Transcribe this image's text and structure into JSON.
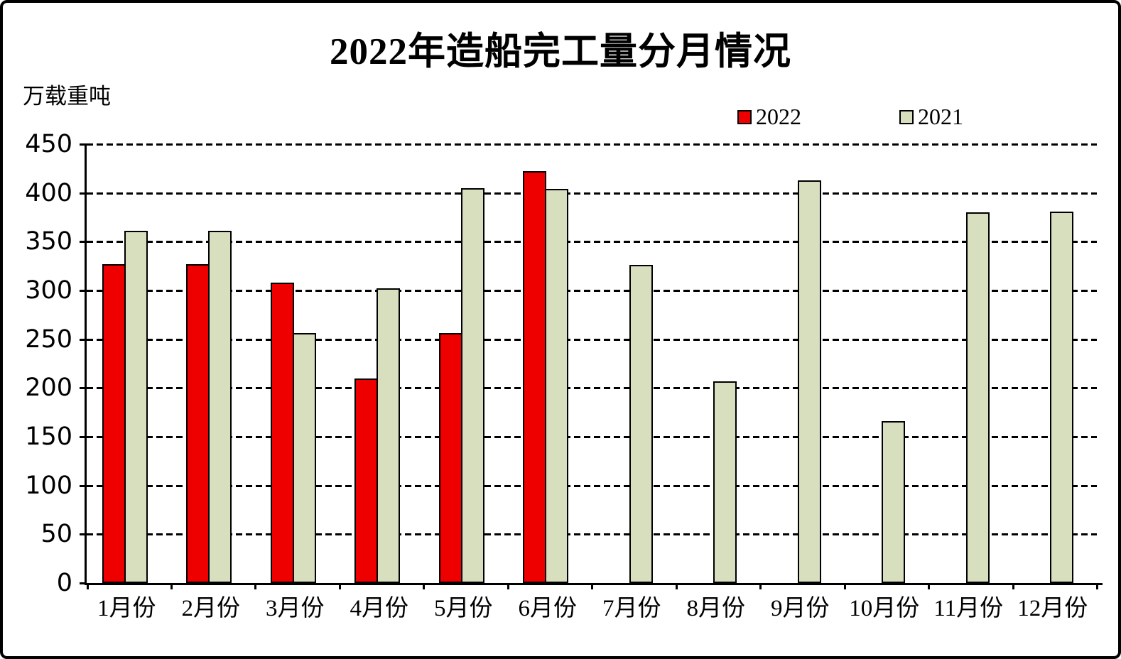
{
  "title": "2022年造船完工量分月情况",
  "y_axis_unit": "万载重吨",
  "legend": [
    {
      "label": "2022",
      "color": "#ee0000"
    },
    {
      "label": "2021",
      "color": "#d8dfbf"
    }
  ],
  "chart_data": {
    "type": "bar",
    "title": "2022年造船完工量分月情况",
    "ylabel": "万载重吨",
    "xlabel": "",
    "categories": [
      "1月份",
      "2月份",
      "3月份",
      "4月份",
      "5月份",
      "6月份",
      "7月份",
      "8月份",
      "9月份",
      "10月份",
      "11月份",
      "12月份"
    ],
    "series": [
      {
        "name": "2022",
        "color": "#ee0000",
        "values": [
          327,
          327,
          308,
          210,
          256,
          422,
          null,
          null,
          null,
          null,
          null,
          null
        ]
      },
      {
        "name": "2021",
        "color": "#d8dfbf",
        "values": [
          361,
          361,
          256,
          302,
          405,
          404,
          326,
          207,
          413,
          166,
          380,
          381
        ]
      }
    ],
    "ylim": [
      0,
      450
    ],
    "yticks": [
      0,
      50,
      100,
      150,
      200,
      250,
      300,
      350,
      400,
      450
    ],
    "grid": "horizontal-dashed",
    "legend_position": "top-right"
  }
}
